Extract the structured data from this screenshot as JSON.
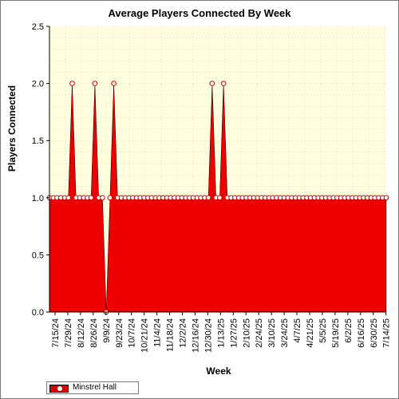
{
  "chart_data": {
    "type": "area",
    "title": "Average Players Connected By Week",
    "xlabel": "Week",
    "ylabel": "Players Connected",
    "ylim": [
      0,
      2.5
    ],
    "yticks": [
      "0.0",
      "0.5",
      "1.0",
      "1.5",
      "2.0",
      "2.5"
    ],
    "xtick_labels": [
      "7/15/24",
      "7/29/24",
      "8/12/24",
      "8/26/24",
      "9/9/24",
      "9/23/24",
      "10/7/24",
      "10/21/24",
      "11/4/24",
      "11/18/24",
      "12/2/24",
      "12/16/24",
      "12/30/24",
      "1/13/25",
      "1/27/25",
      "2/10/25",
      "2/24/25",
      "3/10/25",
      "3/24/25",
      "4/7/25",
      "4/21/25",
      "5/5/25",
      "5/19/25",
      "6/2/25",
      "6/16/25",
      "6/30/25",
      "7/14/25"
    ],
    "grid": true,
    "legend_position": "bottom-left",
    "series": [
      {
        "name": "Minstrel Hall",
        "color": "#ee0000",
        "values": [
          1,
          1,
          1,
          1,
          1,
          1,
          2,
          1,
          1,
          1,
          1,
          1,
          2,
          1,
          1,
          0,
          1,
          2,
          1,
          1,
          1,
          1,
          1,
          1,
          1,
          1,
          1,
          1,
          1,
          1,
          1,
          1,
          1,
          1,
          1,
          1,
          1,
          1,
          1,
          1,
          1,
          1,
          1,
          2,
          1,
          1,
          2,
          1,
          1,
          1,
          1,
          1,
          1,
          1,
          1,
          1,
          1,
          1,
          1,
          1,
          1,
          1,
          1,
          1,
          1,
          1,
          1,
          1,
          1,
          1,
          1,
          1,
          1,
          1,
          1,
          1,
          1,
          1,
          1,
          1,
          1,
          1,
          1,
          1,
          1,
          1,
          1,
          1,
          1,
          1
        ]
      }
    ]
  },
  "legend": {
    "label": "Minstrel Hall"
  }
}
